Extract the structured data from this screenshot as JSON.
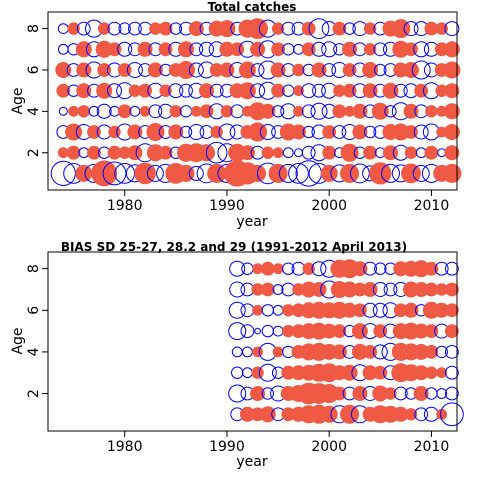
{
  "colors": {
    "positive": "#0000ff",
    "negative": "#f05a44",
    "frame": "#000000"
  },
  "chart_data": [
    {
      "type": "scatter",
      "subtype": "residual-bubble",
      "title": "Total catches",
      "xlabel": "year",
      "ylabel": "Age",
      "xlim": [
        1972.5,
        2012.5
      ],
      "ylim": [
        0.2,
        8.8
      ],
      "xticks": [
        1980,
        1990,
        2000,
        2010
      ],
      "yticks": [
        2,
        4,
        6,
        8
      ],
      "grid": false,
      "legend": "none",
      "years": [
        1974,
        1975,
        1976,
        1977,
        1978,
        1979,
        1980,
        1981,
        1982,
        1983,
        1984,
        1985,
        1986,
        1987,
        1988,
        1989,
        1990,
        1991,
        1992,
        1993,
        1994,
        1995,
        1996,
        1997,
        1998,
        1999,
        2000,
        2001,
        2002,
        2003,
        2004,
        2005,
        2006,
        2007,
        2008,
        2009,
        2010,
        2011,
        2012
      ],
      "ages": [
        1,
        2,
        3,
        4,
        5,
        6,
        7,
        8
      ],
      "residuals": [
        [
          1.8,
          1.2,
          -0.8,
          1.0,
          -1.9,
          1.6,
          1.2,
          0.9,
          -1.3,
          0.8,
          1.0,
          -1.2,
          -0.8,
          0.6,
          1.1,
          -1.0,
          1.0,
          -2.0,
          -1.4,
          -0.8,
          1.3,
          -1.0,
          1.0,
          1.2,
          2.0,
          1.2,
          -0.8,
          0.9,
          -1.0,
          1.1,
          0.7,
          -1.4,
          1.0,
          0.9,
          -1.1,
          0.8,
          1.0,
          -0.8,
          -1.0
        ],
        [
          -0.3,
          -0.5,
          0.3,
          -0.5,
          0.4,
          -0.5,
          -0.4,
          -0.6,
          1.0,
          -0.8,
          -0.5,
          0.4,
          -0.9,
          -1.0,
          -0.8,
          1.3,
          1.0,
          -0.9,
          -0.6,
          0.5,
          -0.4,
          -0.3,
          0.3,
          0.2,
          0.5,
          0.8,
          -0.5,
          0.3,
          -0.9,
          0.4,
          -0.5,
          0.3,
          -0.6,
          0.7,
          -0.4,
          0.3,
          -0.5,
          0.2,
          -0.6
        ],
        [
          0.5,
          -0.8,
          0.7,
          -0.5,
          0.6,
          -0.4,
          0.8,
          -0.6,
          0.5,
          -0.9,
          0.5,
          -0.6,
          0.4,
          0.7,
          0.5,
          -0.4,
          0.8,
          0.6,
          -0.5,
          -1.0,
          0.7,
          0.5,
          -0.8,
          -0.6,
          0.4,
          0.6,
          -0.5,
          0.5,
          0.7,
          -0.6,
          0.4,
          0.5,
          -0.7,
          -0.8,
          -0.5,
          0.6,
          0.8,
          -0.3,
          -0.7
        ],
        [
          0.2,
          -0.3,
          -0.4,
          0.3,
          0.6,
          0.3,
          -0.5,
          0.3,
          -0.3,
          0.5,
          0.6,
          -0.4,
          0.4,
          -0.3,
          -0.5,
          0.7,
          -0.4,
          0.5,
          -0.3,
          -0.9,
          -0.6,
          0.4,
          0.7,
          -0.3,
          0.5,
          0.8,
          0.6,
          -0.5,
          -0.3,
          -0.6,
          0.5,
          -0.8,
          0.4,
          0.9,
          -0.6,
          0.5,
          -0.4,
          -0.3,
          -0.7
        ],
        [
          -0.5,
          0.4,
          -0.6,
          0.5,
          -0.7,
          0.6,
          0.8,
          -0.4,
          -0.5,
          0.7,
          -0.4,
          0.6,
          0.5,
          0.7,
          -0.6,
          0.5,
          0.5,
          -0.6,
          -0.8,
          0.6,
          0.9,
          -0.5,
          0.4,
          -0.3,
          0.6,
          0.5,
          0.7,
          -0.4,
          -0.5,
          0.6,
          -0.6,
          0.5,
          -0.7,
          0.5,
          0.6,
          -0.5,
          0.8,
          -0.4,
          -0.6
        ],
        [
          -0.7,
          0.5,
          -0.6,
          0.8,
          -0.5,
          0.6,
          -0.5,
          0.7,
          0.5,
          -0.6,
          0.4,
          -0.5,
          -0.9,
          0.6,
          0.8,
          -0.5,
          -0.6,
          0.7,
          -0.8,
          0.5,
          1.0,
          -0.6,
          0.5,
          -0.4,
          0.4,
          -0.6,
          0.5,
          0.7,
          -0.5,
          0.6,
          -0.7,
          0.4,
          0.5,
          -0.6,
          -0.7,
          1.0,
          0.6,
          -0.5,
          -0.8
        ],
        [
          0.3,
          0.4,
          -0.7,
          0.7,
          -0.8,
          -0.5,
          0.6,
          0.5,
          -0.6,
          0.5,
          -0.5,
          0.6,
          -0.7,
          0.5,
          0.6,
          0.7,
          -0.6,
          -0.5,
          0.8,
          -0.6,
          0.9,
          -0.5,
          0.4,
          0.3,
          -0.5,
          0.6,
          0.7,
          0.4,
          -0.6,
          0.5,
          -0.4,
          0.5,
          0.6,
          -0.8,
          -0.5,
          0.7,
          0.6,
          -0.5,
          -0.7
        ],
        [
          0.3,
          -0.4,
          0.5,
          0.9,
          -0.4,
          0.5,
          0.4,
          0.5,
          0.5,
          -0.4,
          -0.5,
          0.4,
          0.5,
          -0.6,
          0.5,
          -0.7,
          -0.8,
          0.5,
          -0.9,
          -1.2,
          0.9,
          -0.4,
          0.5,
          0.5,
          -0.5,
          1.2,
          0.6,
          -0.5,
          0.4,
          0.6,
          -0.4,
          0.5,
          -0.7,
          -1.0,
          0.6,
          0.6,
          -0.5,
          -0.4,
          0.6
        ]
      ]
    },
    {
      "type": "scatter",
      "subtype": "residual-bubble",
      "title": "BIAS SD 25-27, 28.2 and 29 (1991-2012 April 2013)",
      "xlabel": "year",
      "ylabel": "Age",
      "xlim": [
        1972.5,
        2012.5
      ],
      "ylim": [
        0.2,
        8.8
      ],
      "xticks": [
        1980,
        1990,
        2000,
        2010
      ],
      "yticks": [
        2,
        4,
        6,
        8
      ],
      "grid": false,
      "legend": "none",
      "years": [
        1991,
        1992,
        1993,
        1994,
        1995,
        1996,
        1997,
        1998,
        1999,
        2000,
        2001,
        2002,
        2003,
        2004,
        2005,
        2006,
        2007,
        2008,
        2009,
        2010,
        2011,
        2012
      ],
      "ages": [
        1,
        2,
        3,
        4,
        5,
        6,
        7,
        8
      ],
      "residuals": [
        [
          0.5,
          -0.6,
          -0.5,
          -0.7,
          0.5,
          -0.5,
          -0.6,
          -0.9,
          -1.0,
          -0.8,
          0.9,
          -1.0,
          0.9,
          -0.6,
          -0.9,
          -0.8,
          -0.6,
          -0.4,
          0.5,
          0.6,
          -0.3,
          1.6
        ],
        [
          0.9,
          0.5,
          -0.6,
          0.4,
          0.7,
          -0.6,
          -0.8,
          -1.3,
          -1.2,
          -1.0,
          -0.5,
          0.5,
          -0.6,
          0.6,
          -0.7,
          -0.4,
          0.5,
          0.4,
          -0.6,
          0.4,
          0.3,
          0.5
        ],
        [
          0.4,
          0.3,
          -0.4,
          0.9,
          0.4,
          -0.5,
          -0.6,
          -0.7,
          -0.9,
          -1.0,
          -0.6,
          -0.7,
          0.8,
          -0.6,
          -0.5,
          0.6,
          -1.0,
          -0.8,
          -0.6,
          -0.4,
          -0.3,
          0.5
        ],
        [
          0.3,
          0.3,
          -0.3,
          0.9,
          -0.3,
          0.4,
          -0.5,
          -0.8,
          -0.9,
          -0.7,
          -0.6,
          0.5,
          -0.7,
          -0.5,
          0.6,
          0.9,
          -0.9,
          -0.8,
          -0.7,
          -0.5,
          0.4,
          0.5
        ],
        [
          0.9,
          0.5,
          0.1,
          0.4,
          0.3,
          -0.4,
          -0.5,
          -0.7,
          -0.8,
          -0.6,
          -0.5,
          0.4,
          -0.7,
          0.7,
          -0.5,
          0.6,
          -0.7,
          -0.8,
          -0.6,
          -0.5,
          0.6,
          -0.5
        ],
        [
          0.8,
          0.5,
          -0.3,
          0.4,
          0.3,
          -0.4,
          -0.5,
          -0.7,
          -0.8,
          -0.7,
          -0.8,
          -0.6,
          -0.5,
          0.6,
          0.6,
          0.7,
          -0.5,
          -0.6,
          0.4,
          -0.8,
          -0.6,
          -0.5
        ],
        [
          0.7,
          0.5,
          -0.4,
          -0.5,
          0.3,
          0.5,
          -0.4,
          -0.7,
          -0.6,
          0.9,
          -0.8,
          -0.7,
          -0.5,
          -0.6,
          0.6,
          0.5,
          0.6,
          -0.7,
          -0.6,
          -0.5,
          -0.4,
          -0.5
        ],
        [
          0.7,
          0.4,
          -0.3,
          -0.5,
          -0.3,
          0.4,
          0.5,
          -0.4,
          0.6,
          0.9,
          -0.9,
          -1.0,
          -0.6,
          0.5,
          0.4,
          0.4,
          -0.6,
          -0.7,
          -0.8,
          -0.5,
          0.5,
          0.5
        ]
      ]
    }
  ]
}
